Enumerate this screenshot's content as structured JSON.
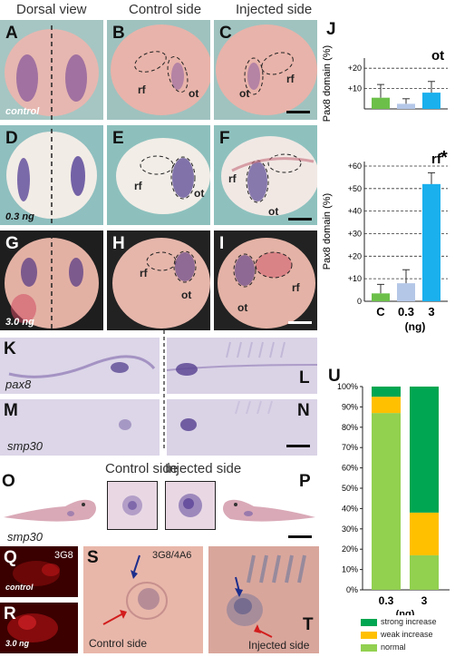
{
  "headers": {
    "dorsal": "Dorsal view",
    "control_side": "Control side",
    "injected_side": "Injected side"
  },
  "panel_letters": {
    "A": "A",
    "B": "B",
    "C": "C",
    "D": "D",
    "E": "E",
    "F": "F",
    "G": "G",
    "H": "H",
    "I": "I",
    "J": "J",
    "K": "K",
    "L": "L",
    "M": "M",
    "N": "N",
    "O": "O",
    "P": "P",
    "Q": "Q",
    "R": "R",
    "S": "S",
    "T": "T",
    "U": "U"
  },
  "region_labels": {
    "rf": "rf",
    "ot": "ot"
  },
  "conditions": {
    "control": "control",
    "low": "0.3 ng",
    "high": "3.0 ng",
    "q_control": "control",
    "r_high": "3.0 ng"
  },
  "genes": {
    "pax8": "pax8",
    "smp30": "smp30"
  },
  "antibodies": {
    "q": "3G8",
    "s": "3G8/4A6"
  },
  "o_row": {
    "control_side": "Control side",
    "injected_side": "Injected side"
  },
  "s_side": "Control side",
  "t_side": "Injected side",
  "colors": {
    "green": "#6cc04a",
    "light_blue": "#b4c7e7",
    "blue": "#1ab0ee",
    "strong": "#00a651",
    "weak": "#ffc000",
    "normal": "#92d050"
  },
  "chart_data": [
    {
      "type": "bar",
      "title": "ot",
      "ylabel": "Pax8 domain (%)",
      "categories": [
        "C",
        "0.3",
        "3"
      ],
      "values": [
        5.5,
        2.5,
        8
      ],
      "errors": [
        6.5,
        2.5,
        5.5
      ],
      "ylim": [
        0,
        25
      ],
      "yticks": [
        "+20",
        "+10"
      ],
      "ytick_values": [
        20,
        10
      ],
      "grid": "dashed"
    },
    {
      "type": "bar",
      "title": "rf",
      "ylabel": "Pax8 domain (%)",
      "xlabel": "(ng)",
      "categories": [
        "C",
        "0.3",
        "3"
      ],
      "values": [
        3.5,
        8,
        52
      ],
      "errors": [
        4,
        6,
        5
      ],
      "ylim": [
        0,
        62
      ],
      "yticks": [
        "+60",
        "+50",
        "+40",
        "+30",
        "+20",
        "+10",
        "0"
      ],
      "ytick_values": [
        60,
        50,
        40,
        30,
        20,
        10,
        0
      ],
      "significance": "*",
      "grid": "dashed"
    },
    {
      "type": "bar",
      "stacked": true,
      "xlabel": "(ng)",
      "categories": [
        "0.3",
        "3"
      ],
      "ylim": [
        0,
        100
      ],
      "yticks": [
        "100%",
        "90%",
        "80%",
        "70%",
        "60%",
        "50%",
        "40%",
        "30%",
        "20%",
        "10%",
        "0%"
      ],
      "series": [
        {
          "name": "normal",
          "values": [
            87,
            17
          ]
        },
        {
          "name": "weak increase",
          "values": [
            8,
            21
          ]
        },
        {
          "name": "strong increase",
          "values": [
            5,
            62
          ]
        }
      ],
      "legend": [
        "strong increase",
        "weak increase",
        "normal"
      ]
    }
  ]
}
